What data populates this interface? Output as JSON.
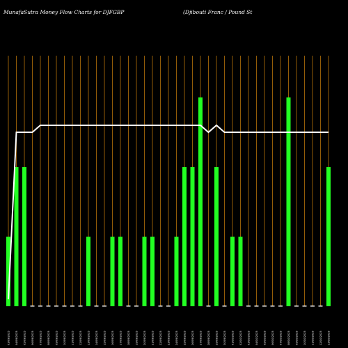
{
  "chart_data": {
    "type": "bar",
    "title_left": "MunafaSutra  Money Flow  Charts for DJFGBP",
    "title_right": "(Djibouti   Franc / Pound St",
    "colors": {
      "background": "#000000",
      "grid": "#b8730a",
      "bar": "#22ff22",
      "line": "#ffffff"
    },
    "ylim": [
      0,
      3
    ],
    "grid": true,
    "categories": [
      "03/09/2025",
      "04/09/2025",
      "05/09/2025",
      "06/09/2025",
      "07/09/2025",
      "08/09/2025",
      "09/09/2025",
      "10/09/2025",
      "11/09/2025",
      "12/09/2025",
      "13/09/2025",
      "14/09/2025",
      "15/09/2025",
      "16/09/2025",
      "17/09/2025",
      "18/09/2025",
      "19/09/2025",
      "20/09/2025",
      "21/09/2025",
      "22/09/2025",
      "23/09/2025",
      "24/09/2025",
      "25/09/2025",
      "26/09/2025",
      "27/09/2025",
      "28/09/2025",
      "29/09/2025",
      "30/09/2025",
      "01/10/2025",
      "02/10/2025",
      "03/10/2025",
      "04/10/2025",
      "05/10/2025",
      "06/10/2025",
      "07/10/2025",
      "08/10/2025",
      "09/10/2025",
      "10/10/2025",
      "11/10/2025",
      "12/10/2025",
      "13/10/2025"
    ],
    "values": [
      1,
      2,
      2,
      0,
      0,
      0,
      0,
      0,
      0,
      0,
      1,
      0,
      0,
      1,
      1,
      0,
      0,
      1,
      1,
      0,
      0,
      1,
      2,
      2,
      3,
      0,
      2,
      0,
      1,
      1,
      0,
      0,
      0,
      0,
      0,
      3,
      0,
      0,
      0,
      0,
      2
    ],
    "series": [
      {
        "type": "line",
        "values": [
          0.1,
          2.5,
          2.5,
          2.5,
          2.6,
          2.6,
          2.6,
          2.6,
          2.6,
          2.6,
          2.6,
          2.6,
          2.6,
          2.6,
          2.6,
          2.6,
          2.6,
          2.6,
          2.6,
          2.6,
          2.6,
          2.6,
          2.6,
          2.6,
          2.6,
          2.5,
          2.6,
          2.5,
          2.5,
          2.5,
          2.5,
          2.5,
          2.5,
          2.5,
          2.5,
          2.5,
          2.5,
          2.5,
          2.5,
          2.5,
          2.5
        ]
      }
    ]
  }
}
